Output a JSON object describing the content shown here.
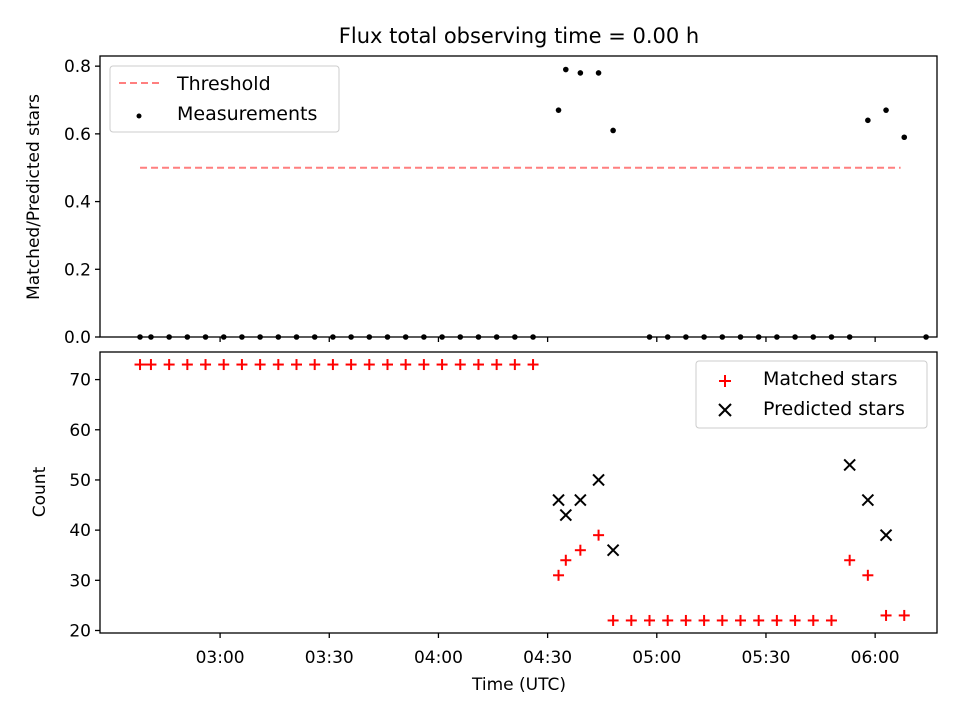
{
  "title": "Flux total observing time = 0.00 h",
  "chart_data": [
    {
      "type": "scatter",
      "ylabel": "Matched/Predicted stars",
      "xlim": [
        "02:27",
        "06:17"
      ],
      "ylim": [
        0,
        0.83
      ],
      "yticks": [
        0.0,
        0.2,
        0.4,
        0.6,
        0.8
      ],
      "ytick_labels": [
        "0.0",
        "0.2",
        "0.4",
        "0.6",
        "0.8"
      ],
      "legend_position": "top-left",
      "threshold": {
        "name": "Threshold",
        "value": 0.5,
        "x_range": [
          "02:38",
          "06:07"
        ],
        "color": "#ff7f7f"
      },
      "series": [
        {
          "name": "Measurements",
          "color": "#000000",
          "x": [
            "02:38",
            "02:41",
            "02:46",
            "02:51",
            "02:56",
            "03:01",
            "03:06",
            "03:11",
            "03:16",
            "03:21",
            "03:26",
            "03:31",
            "03:36",
            "03:41",
            "03:46",
            "03:51",
            "03:56",
            "04:01",
            "04:06",
            "04:11",
            "04:16",
            "04:21",
            "04:26",
            "04:33",
            "04:35",
            "04:39",
            "04:44",
            "04:48",
            "04:58",
            "05:03",
            "05:08",
            "05:13",
            "05:18",
            "05:23",
            "05:28",
            "05:33",
            "05:38",
            "05:43",
            "05:48",
            "05:53",
            "05:58",
            "06:03",
            "06:08",
            "06:14"
          ],
          "y": [
            0,
            0,
            0,
            0,
            0,
            0,
            0,
            0,
            0,
            0,
            0,
            0,
            0,
            0,
            0,
            0,
            0,
            0,
            0,
            0,
            0,
            0,
            0,
            0.67,
            0.79,
            0.78,
            0.78,
            0.61,
            0,
            0,
            0,
            0,
            0,
            0,
            0,
            0,
            0,
            0,
            0,
            0,
            0.64,
            0.67,
            0.59,
            0
          ]
        }
      ]
    },
    {
      "type": "scatter",
      "xlabel": "Time (UTC)",
      "ylabel": "Count",
      "xlim": [
        "02:27",
        "06:17"
      ],
      "ylim": [
        19.5,
        75.5
      ],
      "yticks": [
        20,
        30,
        40,
        50,
        60,
        70
      ],
      "ytick_labels": [
        "20",
        "30",
        "40",
        "50",
        "60",
        "70"
      ],
      "xticks": [
        "03:00",
        "03:30",
        "04:00",
        "04:30",
        "05:00",
        "05:30",
        "06:00"
      ],
      "xtick_labels": [
        "03:00",
        "03:30",
        "04:00",
        "04:30",
        "05:00",
        "05:30",
        "06:00"
      ],
      "legend_position": "top-right",
      "series": [
        {
          "name": "Matched stars",
          "color": "#ff0000",
          "marker": "plus",
          "x": [
            "02:38",
            "02:41",
            "02:46",
            "02:51",
            "02:56",
            "03:01",
            "03:06",
            "03:11",
            "03:16",
            "03:21",
            "03:26",
            "03:31",
            "03:36",
            "03:41",
            "03:46",
            "03:51",
            "03:56",
            "04:01",
            "04:06",
            "04:11",
            "04:16",
            "04:21",
            "04:26",
            "04:33",
            "04:35",
            "04:39",
            "04:44",
            "04:48",
            "04:53",
            "04:58",
            "05:03",
            "05:08",
            "05:13",
            "05:18",
            "05:23",
            "05:28",
            "05:33",
            "05:38",
            "05:43",
            "05:48",
            "05:53",
            "05:58",
            "06:03",
            "06:08"
          ],
          "y": [
            73,
            73,
            73,
            73,
            73,
            73,
            73,
            73,
            73,
            73,
            73,
            73,
            73,
            73,
            73,
            73,
            73,
            73,
            73,
            73,
            73,
            73,
            73,
            31,
            34,
            36,
            39,
            22,
            22,
            22,
            22,
            22,
            22,
            22,
            22,
            22,
            22,
            22,
            22,
            22,
            34,
            31,
            23,
            23
          ]
        },
        {
          "name": "Predicted stars",
          "color": "#000000",
          "marker": "x",
          "x": [
            "04:33",
            "04:35",
            "04:39",
            "04:44",
            "04:48",
            "05:53",
            "05:58",
            "06:03"
          ],
          "y": [
            46,
            43,
            46,
            50,
            36,
            53,
            46,
            39
          ]
        }
      ]
    }
  ]
}
